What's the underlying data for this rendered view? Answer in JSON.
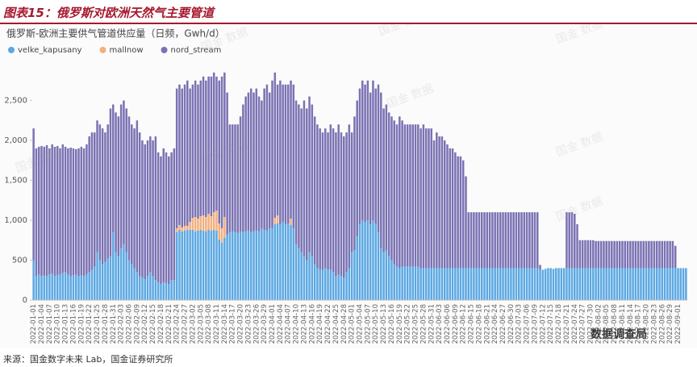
{
  "header": {
    "title": "图表15：俄罗斯对欧洲天然气主要管道"
  },
  "source": "来源：国金数字未来 Lab，国金证券研究所",
  "watermark": "国金 数据",
  "logo": "数据调查局",
  "chart_data": {
    "type": "bar",
    "stacked": true,
    "grid": false,
    "title": "俄罗斯-欧洲主要供气管道供应量（日频，Gwh/d）",
    "ylim": [
      0,
      2900
    ],
    "yticks": [
      0,
      500,
      {
        "value": 1000,
        "label": "1,000"
      },
      {
        "value": 1500,
        "label": "1,500"
      },
      {
        "value": 2000,
        "label": "2,000"
      },
      {
        "value": 2500,
        "label": "2,500"
      }
    ],
    "categories": [
      "2022-01-01",
      null,
      null,
      "2022-01-04",
      null,
      null,
      "2022-01-07",
      null,
      null,
      "2022-01-10",
      null,
      null,
      "2022-01-13",
      null,
      null,
      "2022-01-16",
      null,
      null,
      "2022-01-19",
      null,
      null,
      "2022-01-22",
      null,
      null,
      "2022-01-25",
      null,
      null,
      "2022-01-28",
      null,
      null,
      "2022-01-31",
      null,
      null,
      "2022-02-03",
      null,
      null,
      "2022-02-06",
      null,
      null,
      "2022-02-09",
      null,
      null,
      "2022-02-12",
      null,
      null,
      "2022-02-15",
      null,
      null,
      "2022-02-18",
      null,
      null,
      "2022-02-21",
      null,
      null,
      "2022-02-24",
      null,
      null,
      "2022-02-27",
      null,
      null,
      "2022-03-02",
      null,
      null,
      "2022-03-05",
      null,
      null,
      "2022-03-08",
      null,
      null,
      "2022-03-11",
      null,
      null,
      "2022-03-14",
      null,
      null,
      "2022-03-17",
      null,
      null,
      "2022-03-20",
      null,
      null,
      "2022-03-23",
      null,
      null,
      "2022-03-26",
      null,
      null,
      "2022-03-29",
      null,
      null,
      "2022-04-01",
      null,
      null,
      "2022-04-04",
      null,
      null,
      "2022-04-07",
      null,
      null,
      "2022-04-10",
      null,
      null,
      "2022-04-13",
      null,
      null,
      "2022-04-16",
      null,
      null,
      "2022-04-19",
      null,
      null,
      "2022-04-22",
      null,
      null,
      "2022-04-25",
      null,
      null,
      "2022-04-28",
      null,
      null,
      "2022-05-01",
      null,
      null,
      "2022-05-04",
      null,
      null,
      "2022-05-07",
      null,
      null,
      "2022-05-10",
      null,
      null,
      "2022-05-13",
      null,
      null,
      "2022-05-16",
      null,
      null,
      "2022-05-19",
      null,
      null,
      "2022-05-22",
      null,
      null,
      "2022-05-25",
      null,
      null,
      "2022-05-28",
      null,
      null,
      "2022-05-31",
      null,
      null,
      "2022-06-03",
      null,
      null,
      "2022-06-06",
      null,
      null,
      "2022-06-09",
      null,
      null,
      "2022-06-12",
      null,
      null,
      "2022-06-15",
      null,
      null,
      "2022-06-18",
      null,
      null,
      "2022-06-21",
      null,
      null,
      "2022-06-24",
      null,
      null,
      "2022-06-27",
      null,
      null,
      "2022-06-30",
      null,
      null,
      "2022-07-03",
      null,
      null,
      "2022-07-06",
      null,
      null,
      "2022-07-09",
      null,
      null,
      "2022-07-12",
      null,
      null,
      "2022-07-15",
      null,
      null,
      "2022-07-18",
      null,
      null,
      "2022-07-21",
      null,
      null,
      "2022-07-24",
      null,
      null,
      "2022-07-27",
      null,
      null,
      "2022-07-30",
      null,
      null,
      "2022-08-02",
      null,
      null,
      "2022-08-05",
      null,
      null,
      "2022-08-08",
      null,
      null,
      "2022-08-11",
      null,
      null,
      "2022-08-14",
      null,
      null,
      "2022-08-17",
      null,
      null,
      "2022-08-20",
      null,
      null,
      "2022-08-23",
      null,
      null,
      "2022-08-26",
      null,
      null,
      "2022-08-29",
      null,
      null,
      "2022-09-01",
      null,
      null,
      null
    ],
    "series": [
      {
        "name": "velke_kapusany",
        "color": "#5ba8e3",
        "values": [
          500,
          300,
          320,
          300,
          310,
          300,
          320,
          330,
          300,
          310,
          320,
          340,
          350,
          320,
          300,
          310,
          320,
          300,
          310,
          300,
          320,
          350,
          380,
          420,
          600,
          500,
          450,
          480,
          520,
          550,
          850,
          600,
          550,
          650,
          700,
          600,
          500,
          450,
          400,
          350,
          300,
          280,
          260,
          300,
          350,
          300,
          250,
          220,
          200,
          220,
          210,
          200,
          250,
          250,
          850,
          880,
          860,
          870,
          880,
          880,
          880,
          860,
          870,
          880,
          870,
          860,
          880,
          870,
          880,
          870,
          760,
          720,
          780,
          820,
          850,
          860,
          850,
          840,
          860,
          850,
          860,
          870,
          850,
          860,
          870,
          860,
          900,
          880,
          870,
          900,
          900,
          950,
          960,
          950,
          980,
          950,
          960,
          940,
          900,
          700,
          650,
          600,
          550,
          500,
          600,
          550,
          450,
          400,
          380,
          380,
          400,
          380,
          380,
          350,
          300,
          320,
          300,
          280,
          350,
          400,
          600,
          620,
          800,
          950,
          1000,
          980,
          1000,
          950,
          1000,
          960,
          850,
          650,
          600,
          620,
          550,
          500,
          450,
          420,
          400,
          420,
          420,
          420,
          420,
          420,
          420,
          420,
          400,
          400,
          400,
          400,
          400,
          400,
          400,
          400,
          400,
          400,
          400,
          400,
          400,
          400,
          400,
          400,
          400,
          400,
          400,
          400,
          400,
          400,
          400,
          400,
          400,
          400,
          400,
          400,
          400,
          400,
          400,
          400,
          400,
          400,
          400,
          400,
          400,
          400,
          400,
          400,
          400,
          400,
          400,
          400,
          400,
          380,
          380,
          390,
          400,
          400,
          390,
          400,
          400,
          400,
          400,
          400,
          400,
          400,
          400,
          400,
          400,
          400,
          400,
          400,
          400,
          400,
          400,
          400,
          400,
          400,
          400,
          400,
          400,
          400,
          400,
          400,
          400,
          400,
          400,
          400,
          400,
          400,
          400,
          400,
          400,
          400,
          400,
          400,
          400,
          400,
          400,
          400,
          400,
          400,
          400,
          400,
          400,
          400,
          400,
          400,
          400
        ]
      },
      {
        "name": "mallnow",
        "color": "#f2b07f",
        "values": [
          0,
          0,
          0,
          0,
          0,
          0,
          0,
          0,
          0,
          0,
          0,
          0,
          0,
          0,
          0,
          0,
          0,
          0,
          0,
          0,
          0,
          0,
          0,
          0,
          0,
          0,
          0,
          0,
          0,
          0,
          0,
          0,
          0,
          0,
          0,
          0,
          0,
          0,
          0,
          0,
          0,
          0,
          0,
          0,
          0,
          0,
          0,
          0,
          0,
          0,
          0,
          0,
          0,
          0,
          50,
          60,
          50,
          60,
          50,
          100,
          150,
          180,
          150,
          170,
          190,
          180,
          200,
          180,
          220,
          250,
          200,
          180,
          260,
          0,
          0,
          0,
          0,
          0,
          0,
          0,
          0,
          0,
          0,
          0,
          0,
          0,
          0,
          0,
          0,
          0,
          0,
          80,
          100,
          0,
          0,
          0,
          0,
          80,
          0,
          0,
          0,
          0,
          0,
          0,
          0,
          0,
          0,
          0,
          0,
          0,
          0,
          0,
          0,
          0,
          0,
          0,
          0,
          0,
          0,
          0,
          0,
          0,
          0,
          0,
          0,
          0,
          0,
          0,
          0,
          0,
          0,
          0,
          0,
          0,
          0,
          0,
          0,
          0,
          0,
          0,
          0,
          0,
          0,
          0,
          0,
          0,
          0,
          0,
          0,
          0,
          0,
          0,
          0,
          0,
          0,
          0,
          0,
          0,
          0,
          0,
          0,
          0,
          0,
          0,
          0,
          0,
          0,
          0,
          0,
          0,
          0,
          0,
          0,
          0,
          0,
          0,
          0,
          0,
          0,
          0,
          0,
          0,
          0,
          0,
          0,
          0,
          0,
          0,
          0,
          0,
          0,
          0,
          0,
          0,
          0,
          0,
          0,
          0,
          0,
          0,
          0,
          0,
          0,
          0,
          0,
          0,
          0,
          0,
          0,
          0,
          0,
          0,
          0,
          0,
          0,
          0,
          0,
          0,
          0,
          0,
          0,
          0,
          0,
          0,
          0,
          0,
          0,
          0,
          0,
          0,
          0,
          0,
          0,
          0,
          0,
          0,
          0,
          0,
          0,
          0,
          0,
          0,
          0,
          0,
          0,
          0,
          0
        ]
      },
      {
        "name": "nord_stream",
        "color": "#7a72b3",
        "values": [
          1650,
          1600,
          1600,
          1630,
          1610,
          1640,
          1580,
          1620,
          1620,
          1620,
          1580,
          1610,
          1570,
          1580,
          1610,
          1590,
          1570,
          1600,
          1610,
          1600,
          1630,
          1700,
          1720,
          1680,
          1650,
          1700,
          1700,
          1620,
          1680,
          1850,
          1600,
          1750,
          1750,
          1800,
          1800,
          1800,
          1800,
          1750,
          1750,
          1900,
          1800,
          1720,
          1690,
          1700,
          1700,
          1700,
          1800,
          1630,
          1600,
          1680,
          1640,
          1600,
          1600,
          1650,
          1750,
          1760,
          1740,
          1770,
          1820,
          1670,
          1670,
          1710,
          1680,
          1700,
          1740,
          1710,
          1720,
          1750,
          1750,
          1680,
          1790,
          1900,
          1810,
          1780,
          1350,
          1340,
          1350,
          1360,
          1440,
          1600,
          1690,
          1730,
          1800,
          1740,
          1780,
          1690,
          1600,
          1770,
          1830,
          1700,
          1850,
          1820,
          1640,
          1800,
          1720,
          1750,
          1740,
          1730,
          1800,
          1800,
          1800,
          1800,
          1950,
          1900,
          1950,
          1900,
          1850,
          1800,
          1770,
          1720,
          1750,
          1720,
          1820,
          1800,
          1800,
          1880,
          1800,
          1770,
          1750,
          1800,
          1500,
          1680,
          1700,
          1700,
          1750,
          1720,
          1750,
          1650,
          1750,
          1690,
          1850,
          1950,
          1800,
          1830,
          1800,
          1800,
          1800,
          1780,
          1900,
          1830,
          1780,
          1780,
          1780,
          1780,
          1780,
          1780,
          1750,
          1800,
          1750,
          1750,
          1750,
          1600,
          1700,
          1650,
          1650,
          1600,
          1550,
          1500,
          1500,
          1450,
          1400,
          1400,
          1350,
          1150,
          700,
          700,
          700,
          700,
          700,
          700,
          700,
          700,
          700,
          700,
          700,
          700,
          700,
          700,
          700,
          700,
          700,
          700,
          700,
          700,
          700,
          700,
          700,
          700,
          700,
          700,
          700,
          60,
          0,
          0,
          0,
          0,
          0,
          0,
          0,
          0,
          0,
          700,
          700,
          700,
          680,
          550,
          350,
          350,
          350,
          350,
          350,
          350,
          340,
          340,
          340,
          340,
          340,
          340,
          340,
          340,
          340,
          340,
          340,
          340,
          340,
          340,
          340,
          340,
          340,
          340,
          340,
          340,
          340,
          340,
          340,
          340,
          340,
          340,
          340,
          340,
          340,
          340,
          280,
          0,
          0,
          0,
          0
        ]
      }
    ]
  }
}
